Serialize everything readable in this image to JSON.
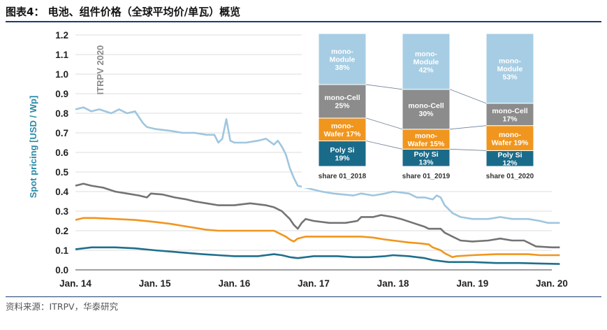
{
  "figure": {
    "title": "图表4：   电池、组件价格（全球平均价/单瓦）概览",
    "source": "资料来源：ITRPV，华泰研究"
  },
  "chart_data": [
    {
      "type": "line",
      "ylabel": "Spot pricing [USD / Wp]",
      "watermark": "ITRPV 2020",
      "ylim": [
        0,
        1.2
      ],
      "yticks": [
        "0.0",
        "0.1",
        "0.2",
        "0.3",
        "0.4",
        "0.5",
        "0.6",
        "0.7",
        "0.8",
        "0.9",
        "1.0",
        "1.1",
        "1.2"
      ],
      "x_categories": [
        "Jan. 14",
        "Jan. 15",
        "Jan. 16",
        "Jan. 17",
        "Jan. 18",
        "Jan. 19",
        "Jan. 20"
      ],
      "grid": "horizontal",
      "series": [
        {
          "key": "module",
          "color": "#9fc6df",
          "points": [
            [
              2014.0,
              0.82
            ],
            [
              2014.1,
              0.83
            ],
            [
              2014.2,
              0.81
            ],
            [
              2014.3,
              0.82
            ],
            [
              2014.45,
              0.8
            ],
            [
              2014.55,
              0.82
            ],
            [
              2014.65,
              0.8
            ],
            [
              2014.75,
              0.81
            ],
            [
              2014.85,
              0.75
            ],
            [
              2014.9,
              0.73
            ],
            [
              2015.0,
              0.72
            ],
            [
              2015.2,
              0.71
            ],
            [
              2015.35,
              0.7
            ],
            [
              2015.5,
              0.7
            ],
            [
              2015.65,
              0.69
            ],
            [
              2015.75,
              0.69
            ],
            [
              2015.8,
              0.65
            ],
            [
              2015.85,
              0.67
            ],
            [
              2015.9,
              0.77
            ],
            [
              2015.95,
              0.66
            ],
            [
              2016.0,
              0.65
            ],
            [
              2016.15,
              0.65
            ],
            [
              2016.3,
              0.66
            ],
            [
              2016.4,
              0.67
            ],
            [
              2016.5,
              0.64
            ],
            [
              2016.55,
              0.66
            ],
            [
              2016.6,
              0.63
            ],
            [
              2016.65,
              0.59
            ],
            [
              2016.7,
              0.52
            ],
            [
              2016.75,
              0.47
            ],
            [
              2016.8,
              0.43
            ],
            [
              2016.9,
              0.42
            ],
            [
              2017.0,
              0.41
            ],
            [
              2017.1,
              0.4
            ],
            [
              2017.25,
              0.39
            ],
            [
              2017.5,
              0.38
            ],
            [
              2017.6,
              0.39
            ],
            [
              2017.75,
              0.38
            ],
            [
              2017.9,
              0.39
            ],
            [
              2018.0,
              0.4
            ],
            [
              2018.2,
              0.39
            ],
            [
              2018.3,
              0.37
            ],
            [
              2018.4,
              0.37
            ],
            [
              2018.5,
              0.36
            ],
            [
              2018.55,
              0.38
            ],
            [
              2018.6,
              0.37
            ],
            [
              2018.65,
              0.33
            ],
            [
              2018.75,
              0.29
            ],
            [
              2018.85,
              0.27
            ],
            [
              2019.0,
              0.26
            ],
            [
              2019.2,
              0.26
            ],
            [
              2019.35,
              0.27
            ],
            [
              2019.5,
              0.26
            ],
            [
              2019.7,
              0.26
            ],
            [
              2019.85,
              0.25
            ],
            [
              2019.95,
              0.24
            ],
            [
              2020.1,
              0.24
            ]
          ]
        },
        {
          "key": "cell",
          "color": "#737373",
          "points": [
            [
              2014.0,
              0.43
            ],
            [
              2014.1,
              0.44
            ],
            [
              2014.2,
              0.43
            ],
            [
              2014.35,
              0.42
            ],
            [
              2014.5,
              0.4
            ],
            [
              2014.65,
              0.39
            ],
            [
              2014.8,
              0.38
            ],
            [
              2014.9,
              0.37
            ],
            [
              2014.95,
              0.39
            ],
            [
              2015.1,
              0.385
            ],
            [
              2015.25,
              0.37
            ],
            [
              2015.4,
              0.36
            ],
            [
              2015.5,
              0.35
            ],
            [
              2015.65,
              0.34
            ],
            [
              2015.8,
              0.33
            ],
            [
              2016.0,
              0.33
            ],
            [
              2016.2,
              0.34
            ],
            [
              2016.4,
              0.33
            ],
            [
              2016.5,
              0.32
            ],
            [
              2016.6,
              0.3
            ],
            [
              2016.7,
              0.26
            ],
            [
              2016.75,
              0.23
            ],
            [
              2016.8,
              0.21
            ],
            [
              2016.85,
              0.24
            ],
            [
              2016.9,
              0.26
            ],
            [
              2017.0,
              0.25
            ],
            [
              2017.2,
              0.24
            ],
            [
              2017.4,
              0.24
            ],
            [
              2017.55,
              0.25
            ],
            [
              2017.6,
              0.27
            ],
            [
              2017.75,
              0.27
            ],
            [
              2017.85,
              0.28
            ],
            [
              2018.0,
              0.27
            ],
            [
              2018.1,
              0.26
            ],
            [
              2018.25,
              0.24
            ],
            [
              2018.4,
              0.22
            ],
            [
              2018.45,
              0.21
            ],
            [
              2018.6,
              0.21
            ],
            [
              2018.65,
              0.19
            ],
            [
              2018.75,
              0.17
            ],
            [
              2018.85,
              0.15
            ],
            [
              2019.0,
              0.145
            ],
            [
              2019.2,
              0.15
            ],
            [
              2019.35,
              0.16
            ],
            [
              2019.5,
              0.15
            ],
            [
              2019.65,
              0.15
            ],
            [
              2019.8,
              0.12
            ],
            [
              2020.0,
              0.115
            ],
            [
              2020.1,
              0.115
            ]
          ]
        },
        {
          "key": "wafer",
          "color": "#f0961e",
          "points": [
            [
              2014.0,
              0.255
            ],
            [
              2014.1,
              0.265
            ],
            [
              2014.25,
              0.265
            ],
            [
              2014.5,
              0.26
            ],
            [
              2014.75,
              0.255
            ],
            [
              2015.0,
              0.245
            ],
            [
              2015.2,
              0.235
            ],
            [
              2015.35,
              0.225
            ],
            [
              2015.5,
              0.215
            ],
            [
              2015.65,
              0.205
            ],
            [
              2015.8,
              0.2
            ],
            [
              2016.0,
              0.2
            ],
            [
              2016.3,
              0.2
            ],
            [
              2016.5,
              0.2
            ],
            [
              2016.55,
              0.19
            ],
            [
              2016.65,
              0.17
            ],
            [
              2016.7,
              0.155
            ],
            [
              2016.75,
              0.145
            ],
            [
              2016.8,
              0.16
            ],
            [
              2016.9,
              0.17
            ],
            [
              2017.0,
              0.17
            ],
            [
              2017.2,
              0.17
            ],
            [
              2017.4,
              0.17
            ],
            [
              2017.6,
              0.17
            ],
            [
              2017.75,
              0.165
            ],
            [
              2017.9,
              0.155
            ],
            [
              2018.0,
              0.15
            ],
            [
              2018.2,
              0.14
            ],
            [
              2018.35,
              0.135
            ],
            [
              2018.45,
              0.13
            ],
            [
              2018.5,
              0.115
            ],
            [
              2018.6,
              0.1
            ],
            [
              2018.65,
              0.085
            ],
            [
              2018.7,
              0.075
            ],
            [
              2018.75,
              0.065
            ],
            [
              2018.8,
              0.07
            ],
            [
              2019.0,
              0.075
            ],
            [
              2019.3,
              0.08
            ],
            [
              2019.5,
              0.08
            ],
            [
              2019.7,
              0.08
            ],
            [
              2019.85,
              0.075
            ],
            [
              2020.1,
              0.075
            ]
          ]
        },
        {
          "key": "polysi",
          "color": "#1f6f8b",
          "points": [
            [
              2014.0,
              0.105
            ],
            [
              2014.1,
              0.11
            ],
            [
              2014.2,
              0.115
            ],
            [
              2014.5,
              0.115
            ],
            [
              2014.75,
              0.11
            ],
            [
              2015.0,
              0.1
            ],
            [
              2015.3,
              0.09
            ],
            [
              2015.6,
              0.08
            ],
            [
              2015.8,
              0.075
            ],
            [
              2016.0,
              0.07
            ],
            [
              2016.3,
              0.07
            ],
            [
              2016.5,
              0.08
            ],
            [
              2016.6,
              0.075
            ],
            [
              2016.7,
              0.065
            ],
            [
              2016.8,
              0.06
            ],
            [
              2016.9,
              0.065
            ],
            [
              2017.0,
              0.07
            ],
            [
              2017.3,
              0.07
            ],
            [
              2017.5,
              0.065
            ],
            [
              2017.7,
              0.065
            ],
            [
              2017.9,
              0.07
            ],
            [
              2018.0,
              0.075
            ],
            [
              2018.2,
              0.07
            ],
            [
              2018.4,
              0.06
            ],
            [
              2018.5,
              0.05
            ],
            [
              2018.6,
              0.045
            ],
            [
              2018.7,
              0.04
            ],
            [
              2018.8,
              0.04
            ],
            [
              2019.0,
              0.04
            ],
            [
              2019.3,
              0.035
            ],
            [
              2019.6,
              0.035
            ],
            [
              2019.8,
              0.033
            ],
            [
              2020.1,
              0.03
            ]
          ]
        }
      ]
    },
    {
      "type": "bar",
      "stacked": true,
      "categories": [
        "share 01_2018",
        "share 01_2019",
        "share 01_2020"
      ],
      "series": [
        {
          "key": "polysi",
          "color": "#1a6b8a",
          "text_color": "#ffffff",
          "labels": [
            "Poly Si",
            "Poly Si",
            "Poly Si"
          ],
          "values": [
            19,
            13,
            12
          ]
        },
        {
          "key": "wafer",
          "color": "#f0961e",
          "text_color": "#ffffff",
          "labels": [
            "mono-\nWafer 17%",
            "mono-\nWafer 15%",
            "mono-\nWafer 19%"
          ],
          "values": [
            17,
            15,
            19
          ]
        },
        {
          "key": "cell",
          "color": "#8c8c8c",
          "text_color": "#ffffff",
          "labels": [
            "mono-Cell",
            "mono-Cell",
            "mono-Cell"
          ],
          "values": [
            25,
            30,
            17
          ]
        },
        {
          "key": "module",
          "color": "#a6cde3",
          "text_color": "#ffffff",
          "labels": [
            "mono-\nModule",
            "mono-\nModule",
            "mono-\nModule"
          ],
          "values": [
            38,
            42,
            53
          ]
        }
      ]
    }
  ]
}
